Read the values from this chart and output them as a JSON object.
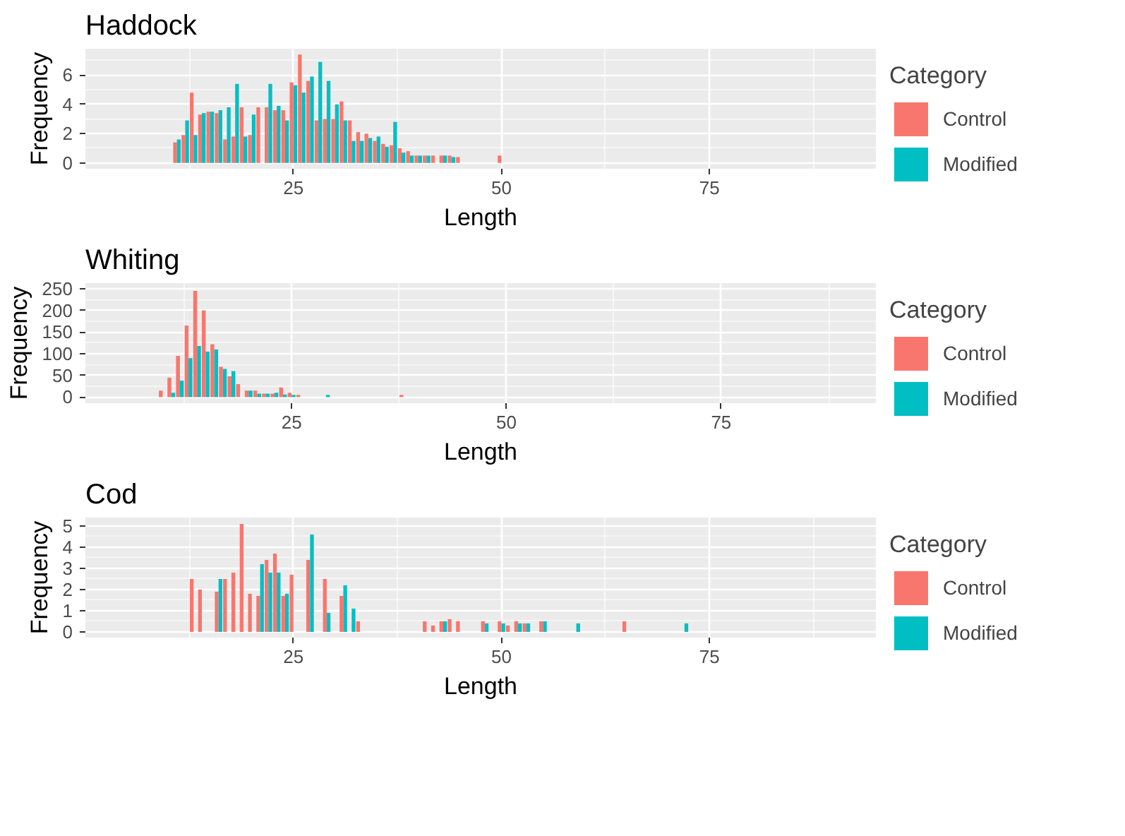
{
  "chart_data": [
    {
      "type": "bar",
      "title": "Haddock",
      "xlabel": "Length",
      "ylabel": "Frequency",
      "legend_title": "Category",
      "legend": "right",
      "grid": true,
      "xlim": [
        0,
        95
      ],
      "xticks": [
        25,
        50,
        75
      ],
      "ylim": [
        -0.4,
        7.8
      ],
      "yticks": [
        0,
        2,
        4,
        6
      ],
      "series": [
        {
          "name": "Control",
          "color": "#f8766d",
          "x": [
            11,
            12,
            13,
            14,
            15,
            16,
            17,
            18,
            19,
            20,
            21,
            22,
            23,
            24,
            25,
            26,
            27,
            28,
            29,
            30,
            31,
            32,
            33,
            34,
            35,
            36,
            37,
            38,
            39,
            40,
            41,
            42,
            43,
            44,
            45,
            50
          ],
          "values": [
            1.4,
            1.9,
            4.8,
            3.3,
            3.5,
            3.4,
            1.6,
            1.8,
            3.8,
            1.9,
            3.8,
            3.8,
            3.6,
            3.6,
            5.5,
            7.4,
            5.6,
            2.9,
            3.0,
            3.0,
            4.2,
            2.9,
            2.1,
            2.0,
            1.5,
            1.3,
            1.2,
            1.0,
            0.8,
            0.5,
            0.5,
            0.5,
            0.5,
            0.5,
            0.4,
            0.5
          ]
        },
        {
          "name": "Modified",
          "color": "#00bfc4",
          "x": [
            11,
            12,
            13,
            14,
            15,
            16,
            17,
            18,
            19,
            20,
            22,
            23,
            24,
            25,
            26,
            27,
            28,
            29,
            30,
            31,
            32,
            33,
            34,
            35,
            36,
            37,
            38,
            39,
            40,
            41,
            43,
            44
          ],
          "values": [
            1.6,
            2.9,
            1.9,
            3.4,
            3.5,
            3.6,
            3.8,
            5.4,
            1.8,
            3.3,
            5.4,
            3.9,
            2.9,
            5.3,
            4.8,
            5.9,
            6.9,
            5.6,
            4.0,
            2.9,
            1.5,
            1.5,
            1.7,
            1.8,
            1.1,
            2.8,
            0.7,
            0.5,
            0.5,
            0.5,
            0.5,
            0.4
          ]
        }
      ]
    },
    {
      "type": "bar",
      "title": "Whiting",
      "xlabel": "Length",
      "ylabel": "Frequency",
      "legend_title": "Category",
      "legend": "right",
      "grid": true,
      "xlim": [
        1,
        93
      ],
      "xticks": [
        25,
        50,
        75
      ],
      "ylim": [
        -14,
        263
      ],
      "yticks": [
        0,
        50,
        100,
        150,
        200,
        250
      ],
      "series": [
        {
          "name": "Control",
          "color": "#f8766d",
          "x": [
            10,
            11,
            12,
            13,
            14,
            15,
            16,
            17,
            18,
            19,
            20,
            21,
            22,
            23,
            24,
            25,
            26,
            38
          ],
          "values": [
            15,
            45,
            95,
            165,
            245,
            200,
            122,
            70,
            48,
            30,
            15,
            15,
            8,
            8,
            22,
            10,
            5,
            5
          ]
        },
        {
          "name": "Modified",
          "color": "#00bfc4",
          "x": [
            11,
            12,
            13,
            14,
            15,
            16,
            17,
            18,
            20,
            21,
            22,
            23,
            24,
            25,
            29
          ],
          "values": [
            10,
            38,
            90,
            118,
            105,
            110,
            65,
            60,
            15,
            8,
            8,
            10,
            6,
            5,
            5
          ]
        }
      ]
    },
    {
      "type": "bar",
      "title": "Cod",
      "xlabel": "Length",
      "ylabel": "Frequency",
      "legend_title": "Category",
      "legend": "right",
      "grid": true,
      "xlim": [
        0,
        95
      ],
      "xticks": [
        25,
        50,
        75
      ],
      "ylim": [
        -0.27,
        5.4
      ],
      "yticks": [
        0,
        1,
        2,
        3,
        4,
        5
      ],
      "series": [
        {
          "name": "Control",
          "color": "#f8766d",
          "x": [
            13,
            14,
            16,
            17,
            18,
            19,
            20,
            21,
            22,
            23,
            24,
            25,
            27,
            29,
            31,
            33,
            41,
            42,
            43,
            44,
            45,
            48,
            50,
            51,
            52,
            53,
            55,
            65
          ],
          "values": [
            2.5,
            2.0,
            1.9,
            2.5,
            2.8,
            5.1,
            1.8,
            1.7,
            3.4,
            3.7,
            1.7,
            2.7,
            3.4,
            2.5,
            1.7,
            0.5,
            0.5,
            0.3,
            0.5,
            0.6,
            0.5,
            0.5,
            0.5,
            0.3,
            0.5,
            0.4,
            0.5,
            0.5
          ]
        },
        {
          "name": "Modified",
          "color": "#00bfc4",
          "x": [
            16,
            21,
            22,
            23,
            24,
            27,
            29,
            31,
            32,
            43,
            48,
            50,
            52,
            53,
            55,
            59,
            72
          ],
          "values": [
            2.5,
            3.2,
            2.8,
            2.8,
            1.8,
            4.6,
            0.9,
            2.2,
            1.1,
            0.5,
            0.4,
            0.4,
            0.4,
            0.4,
            0.5,
            0.4,
            0.4
          ]
        }
      ]
    }
  ]
}
